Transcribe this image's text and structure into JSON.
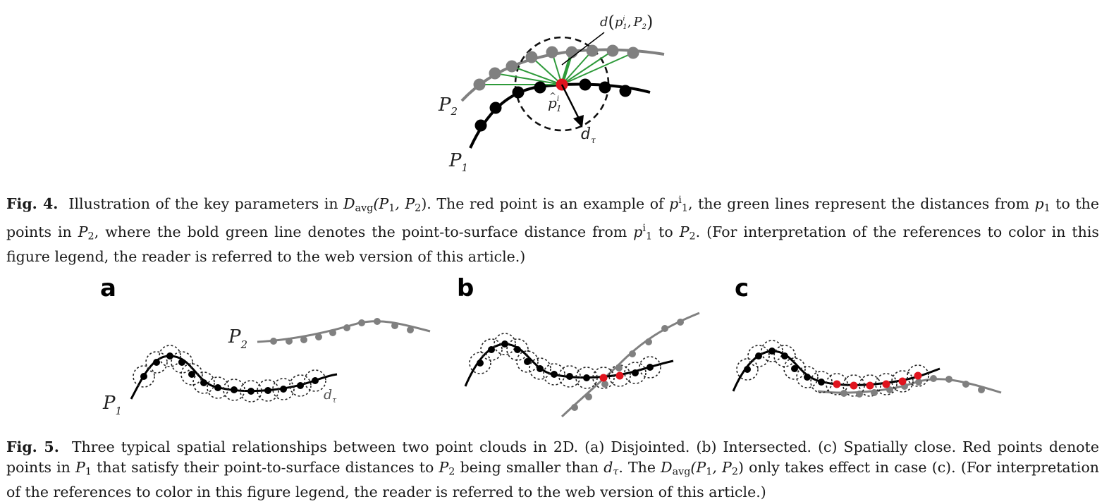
{
  "fig4": {
    "labels": {
      "P2": "P",
      "P2_sub": "2",
      "P1": "P",
      "P1_sub": "1",
      "phat": "p",
      "phat_sub": "1",
      "phat_sup": "i",
      "dtau": "d",
      "dtau_sub": "τ",
      "dist_label": "d",
      "dist_args_p": "p",
      "dist_args_sub1": "1",
      "dist_args_sup": "i",
      "dist_args_comma": ",",
      "dist_args_P": "P",
      "dist_args_sub2": "2"
    },
    "colors": {
      "p1": "#000000",
      "p2": "#808080",
      "highlight": "#e0141e",
      "green": "#2e9a3a"
    }
  },
  "fig4_caption": {
    "label": "Fig. 4.",
    "t1": "Illustration of the key parameters in",
    "Davg": "D",
    "avg": "avg",
    "args1": "(P",
    "s1": "1",
    "comma": ", P",
    "s2": "2",
    "close": ").",
    "t2": "The red point is an example of",
    "p": "p",
    "pi_sup": "i",
    "pi_sub": "1",
    "t3": ", the green lines represent the distances from",
    "t4": "to the points in",
    "P2": "P",
    "P2sub": "2",
    "t5": ", where the bold green line denotes the point-to-surface distance from",
    "t6": "to",
    "t7": ". (For interpretation of the references to color in this figure legend, the reader is referred to the web version of this article.)"
  },
  "fig5": {
    "panels": [
      "a",
      "b",
      "c"
    ],
    "a_labels": {
      "P2": "P",
      "P2_sub": "2",
      "P1": "P",
      "P1_sub": "1",
      "dtau": "d",
      "dtau_sub": "τ"
    }
  },
  "fig5_caption": {
    "label": "Fig. 5.",
    "t1": "Three typical spatial relationships between two point clouds in 2D. (a) Disjointed. (b) Intersected. (c) Spatially close. Red points denote points in",
    "P1": "P",
    "P1sub": "1",
    "t2": "that satisfy their point-to-surface distances to",
    "P2": "P",
    "P2sub": "2",
    "t3": "being smaller than",
    "d": "d",
    "tau": "τ",
    "t4": ". The",
    "Davg": "D",
    "avg": "avg",
    "args": "(P",
    "s1": "1",
    "comma": ", P",
    "s2": "2",
    "close": ")",
    "t5": "only takes effect in case (c). (For interpretation of the references to color in this figure legend, the reader is referred to the web version of this article.)"
  }
}
